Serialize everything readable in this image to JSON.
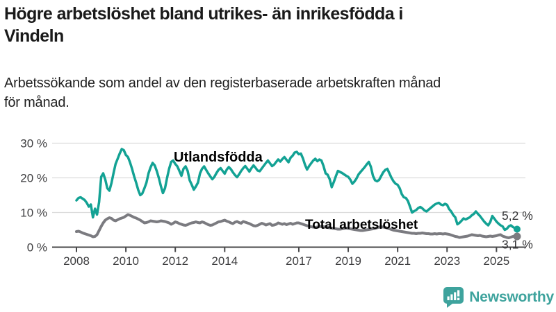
{
  "header": {
    "title": "Högre arbetslöshet bland utrikes- än inrikesfödda i\nVindeln",
    "subtitle": "Arbetssökande som andel av den registerbaserade arbetskraften månad\nför månad."
  },
  "branding": {
    "logo_text": "Newsworthy",
    "logo_color": "#3ea39d"
  },
  "chart_data": {
    "type": "line",
    "title": "Högre arbetslöshet bland utrikes- än inrikesfödda i Vindeln",
    "subtitle": "Arbetssökande som andel av den registerbaserade arbetskraften månad för månad.",
    "x_start": {
      "year": 2008,
      "month": 1
    },
    "x_end": {
      "year": 2025,
      "month": 11
    },
    "x_frequency": "monthly",
    "ylim": [
      0,
      30
    ],
    "grid": "horizontal",
    "yticks": [
      {
        "value": 30,
        "label": "30 %"
      },
      {
        "value": 20,
        "label": "20 %"
      },
      {
        "value": 10,
        "label": "10 %"
      },
      {
        "value": 0,
        "label": "0 %"
      }
    ],
    "xticks": [
      {
        "year": 2008,
        "label": "2008"
      },
      {
        "year": 2010,
        "label": "2010"
      },
      {
        "year": 2012,
        "label": "2012"
      },
      {
        "year": 2014,
        "label": "2014"
      },
      {
        "year": 2017,
        "label": "2017"
      },
      {
        "year": 2019,
        "label": "2019"
      },
      {
        "year": 2021,
        "label": "2021"
      },
      {
        "year": 2023,
        "label": "2023"
      },
      {
        "year": 2025,
        "label": "2025"
      }
    ],
    "series": [
      {
        "name": "Total arbetslöshet",
        "color": "#7b7b80",
        "end_label": "3,1 %",
        "end_value": 3.1,
        "values": [
          4.5,
          4.6,
          4.4,
          4.1,
          3.9,
          3.7,
          3.5,
          3.3,
          3.0,
          3.1,
          3.6,
          4.8,
          6.0,
          7.0,
          7.8,
          8.2,
          8.5,
          8.3,
          7.8,
          7.6,
          7.9,
          8.2,
          8.4,
          8.6,
          9.0,
          9.4,
          9.2,
          8.9,
          8.6,
          8.4,
          8.1,
          7.8,
          7.4,
          7.0,
          7.1,
          7.3,
          7.6,
          7.5,
          7.4,
          7.3,
          7.4,
          7.6,
          7.5,
          7.4,
          7.2,
          7.0,
          6.6,
          6.9,
          7.3,
          7.1,
          6.8,
          6.6,
          6.4,
          6.3,
          6.5,
          6.8,
          7.0,
          7.1,
          7.3,
          7.1,
          7.0,
          7.3,
          7.1,
          6.8,
          6.5,
          6.3,
          6.4,
          6.7,
          7.0,
          7.3,
          7.4,
          7.6,
          7.8,
          7.5,
          7.3,
          7.0,
          6.8,
          7.2,
          7.4,
          7.1,
          6.9,
          7.4,
          7.2,
          7.0,
          6.8,
          6.5,
          6.2,
          6.1,
          6.3,
          6.6,
          6.9,
          6.7,
          6.4,
          6.6,
          6.8,
          6.3,
          6.4,
          6.6,
          7.0,
          6.8,
          6.6,
          6.8,
          6.5,
          6.7,
          6.9,
          6.6,
          6.8,
          7.0,
          7.0,
          6.8,
          6.6,
          6.4,
          6.2,
          6.0,
          5.9,
          5.8,
          5.7,
          5.8,
          5.9,
          6.0,
          5.9,
          5.8,
          5.7,
          5.6,
          5.5,
          5.4,
          5.3,
          5.2,
          5.2,
          5.3,
          5.4,
          5.5,
          5.4,
          5.3,
          5.2,
          5.1,
          5.0,
          4.9,
          4.8,
          4.8,
          4.9,
          5.0,
          5.1,
          5.2,
          5.3,
          5.4,
          5.6,
          5.8,
          5.9,
          5.8,
          5.7,
          5.5,
          5.3,
          5.1,
          4.9,
          4.8,
          4.7,
          4.6,
          4.5,
          4.4,
          4.3,
          4.2,
          4.1,
          4.0,
          4.0,
          3.9,
          4.0,
          4.0,
          4.1,
          4.0,
          3.9,
          3.9,
          3.8,
          3.8,
          3.9,
          3.8,
          3.9,
          3.9,
          3.8,
          3.9,
          3.8,
          3.7,
          3.5,
          3.3,
          3.1,
          3.0,
          2.8,
          2.9,
          3.0,
          3.1,
          3.2,
          3.4,
          3.6,
          3.5,
          3.4,
          3.3,
          3.4,
          3.2,
          3.1,
          3.0,
          3.1,
          3.2,
          3.1,
          3.2,
          3.3,
          3.5,
          3.6,
          3.2,
          3.0,
          2.8,
          2.7,
          2.9,
          3.1,
          3.2,
          3.1
        ]
      },
      {
        "name": "Utlandsfödda",
        "color": "#13a294",
        "end_label": "5,2 %",
        "end_value": 5.2,
        "values": [
          13.5,
          14.2,
          14.4,
          14.0,
          13.6,
          12.8,
          11.7,
          12.3,
          8.6,
          11.1,
          9.4,
          13.0,
          20.3,
          21.3,
          19.5,
          17.0,
          16.3,
          18.5,
          21.3,
          24.0,
          25.5,
          27.0,
          28.3,
          28.0,
          26.6,
          26.0,
          24.5,
          22.6,
          20.5,
          18.6,
          16.5,
          15.0,
          15.5,
          17.0,
          18.6,
          21.3,
          23.0,
          24.3,
          23.6,
          22.0,
          20.0,
          17.6,
          15.6,
          17.0,
          20.0,
          22.6,
          24.6,
          25.0,
          24.0,
          23.3,
          22.0,
          20.6,
          22.6,
          23.3,
          22.0,
          19.3,
          18.0,
          16.6,
          17.5,
          18.6,
          21.3,
          22.6,
          23.3,
          22.3,
          21.3,
          20.4,
          19.6,
          20.3,
          21.4,
          22.3,
          22.8,
          22.0,
          21.2,
          22.4,
          23.1,
          22.5,
          21.6,
          20.8,
          20.2,
          21.0,
          22.0,
          22.8,
          23.4,
          22.6,
          21.8,
          22.8,
          23.6,
          22.9,
          22.1,
          21.9,
          22.7,
          23.5,
          24.3,
          25.0,
          24.2,
          23.4,
          23.8,
          24.6,
          25.3,
          24.7,
          25.4,
          26.0,
          25.2,
          24.5,
          25.8,
          26.4,
          27.3,
          27.5,
          26.8,
          27.0,
          25.6,
          23.8,
          22.4,
          23.4,
          24.2,
          25.0,
          25.5,
          24.8,
          25.3,
          25.0,
          23.4,
          21.3,
          20.9,
          19.6,
          17.3,
          18.8,
          20.5,
          22.0,
          21.7,
          21.4,
          21.0,
          20.6,
          20.3,
          19.5,
          18.3,
          18.9,
          19.8,
          21.0,
          21.7,
          22.4,
          23.1,
          23.9,
          24.6,
          23.2,
          20.6,
          19.3,
          19.0,
          19.4,
          20.5,
          21.6,
          22.3,
          22.6,
          21.3,
          20.0,
          19.0,
          18.3,
          18.0,
          17.0,
          15.3,
          14.4,
          14.2,
          13.3,
          11.7,
          10.0,
          10.4,
          10.7,
          11.3,
          11.6,
          11.2,
          10.6,
          10.3,
          10.8,
          11.3,
          11.8,
          12.3,
          12.6,
          12.8,
          12.3,
          12.1,
          12.5,
          12.2,
          11.0,
          10.3,
          9.3,
          8.6,
          6.6,
          7.0,
          7.6,
          8.3,
          8.0,
          8.3,
          8.6,
          9.2,
          9.6,
          10.3,
          9.6,
          9.0,
          8.2,
          7.4,
          6.8,
          6.3,
          7.3,
          9.0,
          8.2,
          7.4,
          6.8,
          6.3,
          6.0,
          5.0,
          5.3,
          6.0,
          6.3,
          5.8,
          5.5,
          5.2
        ]
      }
    ],
    "colors": {
      "gridline": "#dcdcdc",
      "axis": "#48484a",
      "teal": "#13a294",
      "gray": "#7b7b80"
    }
  }
}
